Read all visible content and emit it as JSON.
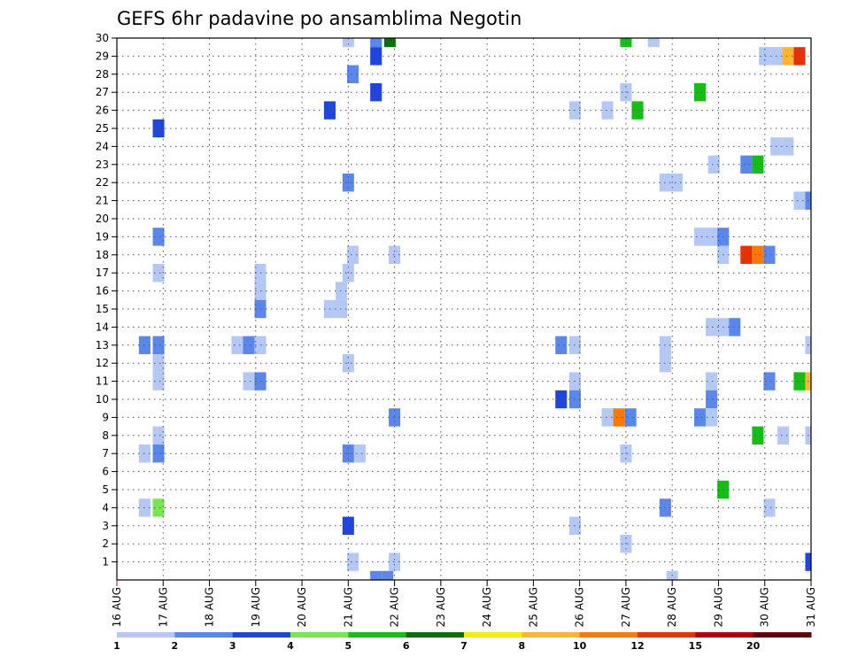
{
  "chart_data": {
    "type": "heatmap",
    "title": "GEFS 6hr padavine po ansamblima Negotin",
    "xlabel": "",
    "ylabel": "",
    "x_ticks": [
      "16 AUG",
      "17 AUG",
      "18 AUG",
      "19 AUG",
      "20 AUG",
      "21 AUG",
      "22 AUG",
      "23 AUG",
      "24 AUG",
      "25 AUG",
      "26 AUG",
      "27 AUG",
      "28 AUG",
      "29 AUG",
      "30 AUG",
      "31 AUG"
    ],
    "y_ticks": [
      1,
      2,
      3,
      4,
      5,
      6,
      7,
      8,
      9,
      10,
      11,
      12,
      13,
      14,
      15,
      16,
      17,
      18,
      19,
      20,
      21,
      22,
      23,
      24,
      25,
      26,
      27,
      28,
      29,
      30
    ],
    "xlim_days": [
      16,
      31
    ],
    "ylim_members": [
      0,
      30
    ],
    "grid": true,
    "colorbar": {
      "labels": [
        "1",
        "2",
        "3",
        "4",
        "5",
        "6",
        "7",
        "8",
        "10",
        "12",
        "15",
        "20"
      ],
      "colors": [
        "#b4c8f5",
        "#5a87eb",
        "#1e46dc",
        "#78e650",
        "#14be14",
        "#0a6e0a",
        "#f0f000",
        "#ffb432",
        "#ff7800",
        "#e63200",
        "#b40000",
        "#640000"
      ]
    },
    "cells": [
      [
        21.0,
        30,
        1
      ],
      [
        21.6,
        30,
        2
      ],
      [
        21.9,
        30,
        6
      ],
      [
        27.0,
        30,
        5
      ],
      [
        27.6,
        30,
        1
      ],
      [
        21.6,
        29,
        3
      ],
      [
        30.0,
        29,
        1
      ],
      [
        30.25,
        29,
        1
      ],
      [
        30.5,
        29,
        8
      ],
      [
        30.75,
        29,
        10
      ],
      [
        21.1,
        28,
        2
      ],
      [
        21.6,
        27,
        3
      ],
      [
        27.0,
        27,
        1
      ],
      [
        28.6,
        27,
        5
      ],
      [
        20.6,
        26,
        3
      ],
      [
        25.9,
        26,
        1
      ],
      [
        26.6,
        26,
        1
      ],
      [
        27.25,
        26,
        5
      ],
      [
        16.9,
        25,
        3
      ],
      [
        30.25,
        24,
        1
      ],
      [
        30.5,
        24,
        1
      ],
      [
        28.9,
        23,
        1
      ],
      [
        29.6,
        23,
        2
      ],
      [
        29.85,
        23,
        5
      ],
      [
        21.0,
        22,
        2
      ],
      [
        27.85,
        22,
        1
      ],
      [
        28.1,
        22,
        1
      ],
      [
        30.75,
        21,
        1
      ],
      [
        31.0,
        21,
        2
      ],
      [
        16.9,
        19,
        2
      ],
      [
        28.6,
        19,
        1
      ],
      [
        28.85,
        19,
        1
      ],
      [
        29.1,
        19,
        2
      ],
      [
        21.1,
        18,
        1
      ],
      [
        22.0,
        18,
        1
      ],
      [
        29.1,
        18,
        1
      ],
      [
        29.6,
        18,
        10
      ],
      [
        29.85,
        18,
        9
      ],
      [
        30.1,
        18,
        2
      ],
      [
        16.9,
        17,
        1
      ],
      [
        21.0,
        17,
        1
      ],
      [
        19.1,
        17,
        1
      ],
      [
        19.1,
        16,
        1
      ],
      [
        20.85,
        16,
        1
      ],
      [
        19.1,
        15,
        2
      ],
      [
        20.6,
        15,
        1
      ],
      [
        20.85,
        15,
        1
      ],
      [
        28.85,
        14,
        1
      ],
      [
        29.1,
        14,
        1
      ],
      [
        29.35,
        14,
        2
      ],
      [
        16.6,
        13,
        2
      ],
      [
        16.9,
        13,
        2
      ],
      [
        18.6,
        13,
        1
      ],
      [
        18.85,
        13,
        2
      ],
      [
        19.1,
        13,
        1
      ],
      [
        25.6,
        13,
        2
      ],
      [
        25.9,
        13,
        1
      ],
      [
        27.85,
        13,
        1
      ],
      [
        31.0,
        13,
        1
      ],
      [
        16.9,
        12,
        1
      ],
      [
        21.0,
        12,
        1
      ],
      [
        27.85,
        12,
        1
      ],
      [
        16.9,
        11,
        1
      ],
      [
        18.85,
        11,
        1
      ],
      [
        19.1,
        11,
        2
      ],
      [
        25.9,
        11,
        1
      ],
      [
        28.85,
        11,
        1
      ],
      [
        30.1,
        11,
        2
      ],
      [
        30.75,
        11,
        5
      ],
      [
        31.0,
        11,
        8
      ],
      [
        25.6,
        10,
        3
      ],
      [
        25.9,
        10,
        2
      ],
      [
        28.85,
        10,
        2
      ],
      [
        22.0,
        9,
        2
      ],
      [
        26.6,
        9,
        1
      ],
      [
        26.85,
        9,
        9
      ],
      [
        27.1,
        9,
        2
      ],
      [
        28.6,
        9,
        2
      ],
      [
        28.85,
        9,
        1
      ],
      [
        16.9,
        8,
        1
      ],
      [
        29.85,
        8,
        5
      ],
      [
        30.4,
        8,
        1
      ],
      [
        31.0,
        8,
        1
      ],
      [
        16.6,
        7,
        1
      ],
      [
        16.9,
        7,
        2
      ],
      [
        21.0,
        7,
        2
      ],
      [
        21.25,
        7,
        1
      ],
      [
        27.0,
        7,
        1
      ],
      [
        29.1,
        5,
        5
      ],
      [
        16.6,
        4,
        1
      ],
      [
        16.9,
        4,
        4
      ],
      [
        27.85,
        4,
        2
      ],
      [
        30.1,
        4,
        1
      ],
      [
        21.0,
        3,
        3
      ],
      [
        25.9,
        3,
        1
      ],
      [
        27.0,
        2,
        1
      ],
      [
        21.1,
        1,
        1
      ],
      [
        22.0,
        1,
        1
      ],
      [
        31.0,
        1,
        3
      ],
      [
        21.6,
        0,
        2
      ],
      [
        21.85,
        0,
        2
      ],
      [
        28.0,
        0,
        1
      ]
    ]
  }
}
